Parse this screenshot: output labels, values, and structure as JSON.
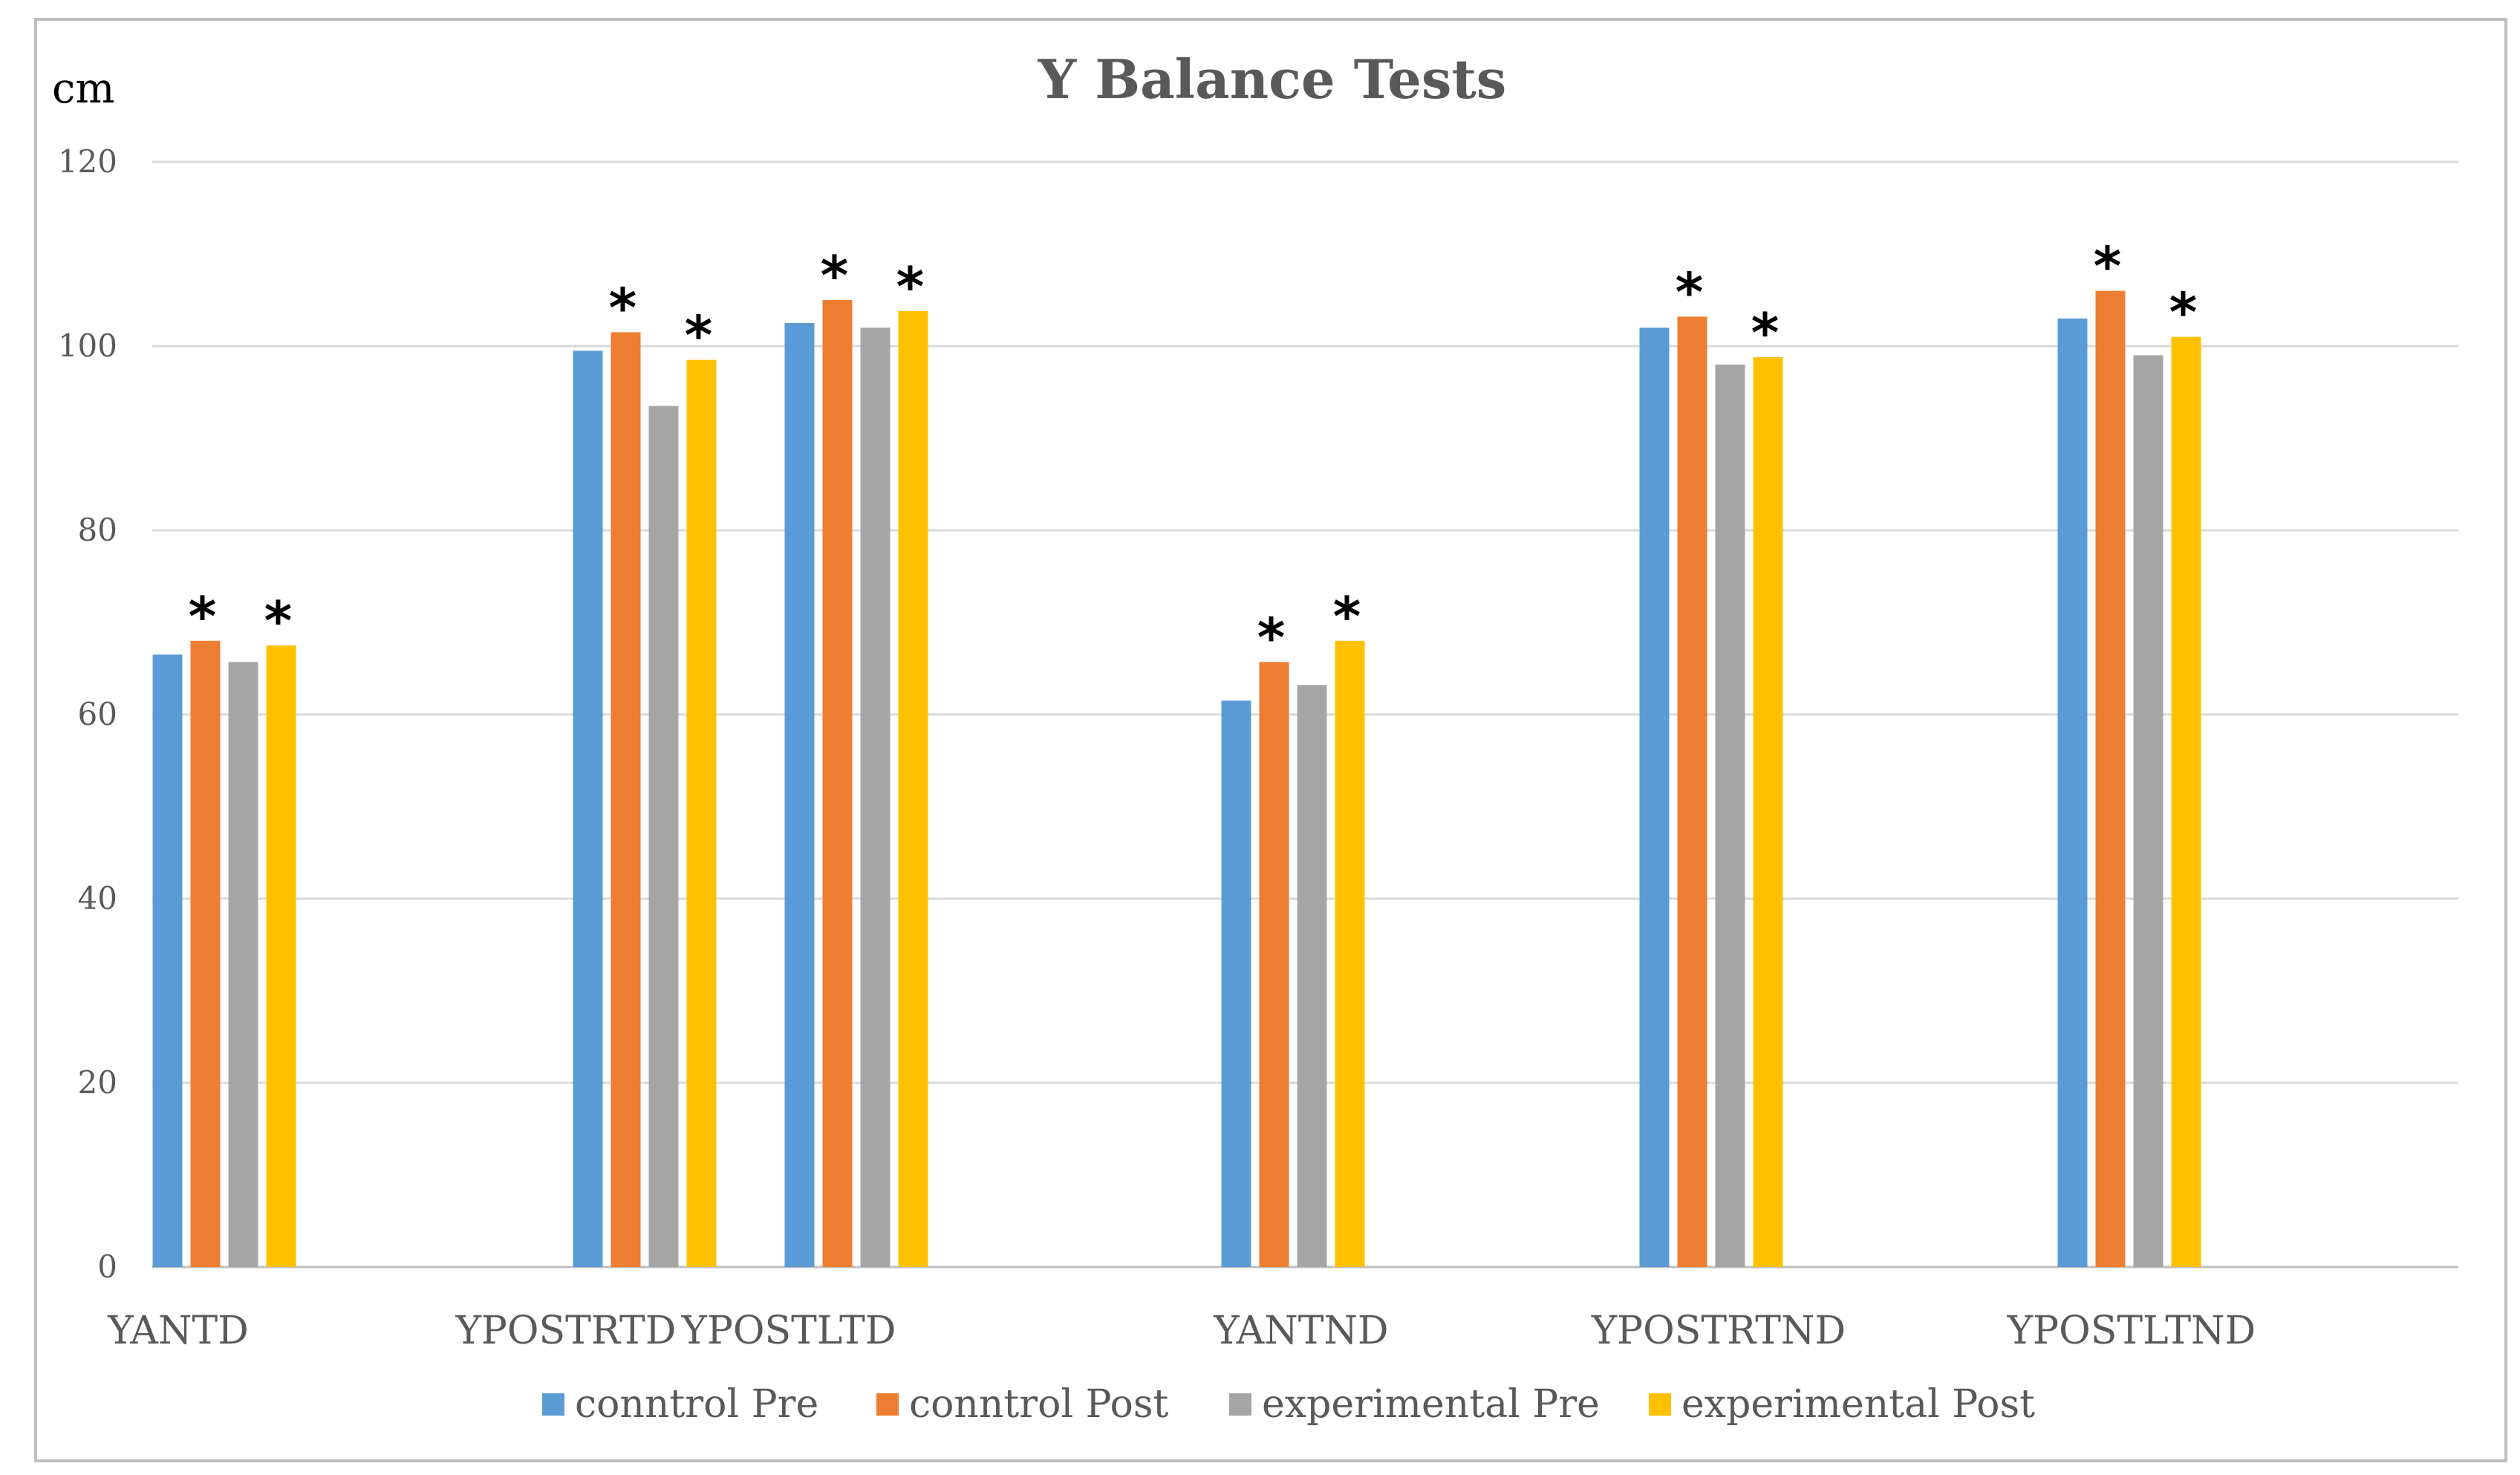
{
  "chart_data": {
    "type": "bar",
    "title": "Y Balance Tests",
    "ylabel": "cm",
    "xlabel": "",
    "ylim": [
      0,
      120
    ],
    "yticks": [
      0,
      20,
      40,
      60,
      80,
      100,
      120
    ],
    "grid": true,
    "legend_position": "bottom",
    "categories": [
      "YANTD",
      "YPOSTRTD",
      "YPOSTLTD",
      "YANTND",
      "YPOSTRTND",
      "YPOSTLTND"
    ],
    "series": [
      {
        "name": "conntrol  Pre",
        "color": "#5b9bd5",
        "values": [
          66.5,
          99.5,
          102.5,
          61.5,
          102,
          103
        ]
      },
      {
        "name": "conntrol  Post",
        "color": "#ed7d31",
        "values": [
          68,
          101.5,
          105,
          65.7,
          103.2,
          106
        ]
      },
      {
        "name": "experimental  Pre",
        "color": "#a5a5a5",
        "values": [
          65.7,
          93.5,
          102,
          63.2,
          98,
          99
        ]
      },
      {
        "name": "experimental  Post",
        "color": "#ffc000",
        "values": [
          67.5,
          98.5,
          103.8,
          68,
          98.8,
          101
        ]
      }
    ],
    "annotations": {
      "marker": "*",
      "series_marked": [
        "conntrol  Post",
        "experimental  Post"
      ]
    }
  }
}
